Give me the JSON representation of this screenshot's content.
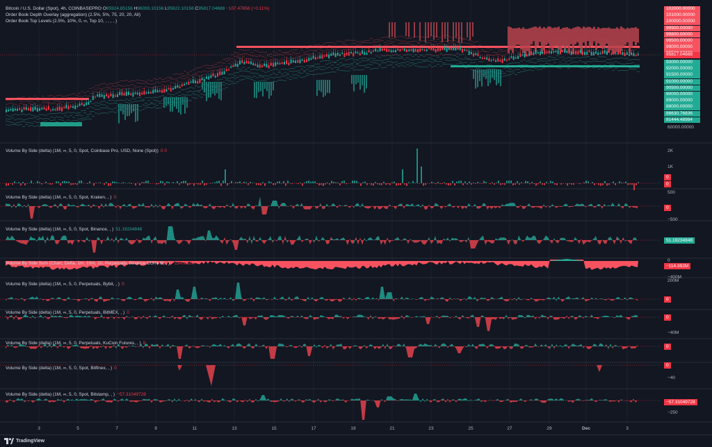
{
  "header": {
    "symbol": "Bitcoin / U.S. Dollar (Spot), 4h, COINBASEPRO",
    "open_label": "O",
    "open": "95924.85156",
    "high_label": "H",
    "high": "96093.10156",
    "low_label": "L",
    "low": "95622.10156",
    "close_label": "C",
    "close": "95817.04688",
    "change": "−107.47656 (−0.11%)",
    "indicators": [
      "Order Book Depth Overlay (aggregation) (2.5%, 5%, 75, 20, 20, All)",
      "Order Book Top Levels (2.5%, 10%, 0, ∞, Top 10, , , , , )"
    ]
  },
  "price_axis": {
    "tags_red": [
      "102000.00000",
      "101000.00000",
      "100000.00000",
      "99900.00000",
      "99800.00000",
      "99500.00000",
      "99000.00000",
      "98500.00000"
    ],
    "tag_current": "95817.04688",
    "tags_green": [
      "93000.00000",
      "92000.00000",
      "91500.00000",
      "91000.00000",
      "90500.00000",
      "90000.00000",
      "89000.00000",
      "88000.00000",
      "88630.76836",
      "81444.48984"
    ],
    "plain": "60000.00000"
  },
  "panes": [
    {
      "title": "Volume By Side (delta) (1M, ∞, 5, 0, Spot, Coinbase Pro, USD, None (Spot))",
      "value": "0 0",
      "value_color": "red",
      "axis": [
        "2K",
        "1K",
        "0",
        "0"
      ]
    },
    {
      "title": "Volume By Side (delta) (1M, ∞, 5, 0, Spot, Kraken, , )",
      "value": "0",
      "value_color": "red",
      "axis": [
        "500",
        "0",
        "−500"
      ]
    },
    {
      "title": "Volume By Side (delta) (1M, ∞, 5, 0, Spot, Binance, , )",
      "value": "51.19234848",
      "value_color": "green",
      "axis": [
        "51.19234848"
      ]
    },
    {
      "title": "Volume By Side Sum (Chart, Delta, 1m, 10m, 10, Perpetuals, Binance COIN-M, , )",
      "value": "−114.992M",
      "value_color": "red",
      "axis": [
        "0",
        "−114.992M",
        "−400M"
      ]
    },
    {
      "title": "Volume By Side (delta) (1M, ∞, 5, 0, Perpetuals, Bybit, , )",
      "value": "0",
      "value_color": "red",
      "axis": [
        "200M",
        "0"
      ]
    },
    {
      "title": "Volume By Side (delta) (1M, ∞, 5, 0, Perpetuals, BitMEX, , )",
      "value": "0",
      "value_color": "red",
      "axis": [
        "0",
        "−40M"
      ]
    },
    {
      "title": "Volume By Side (delta) (1M, ∞, 5, 0, Perpetuals, KuCoin Futures, , )",
      "value": "0",
      "value_color": "red",
      "axis": [
        "0"
      ]
    },
    {
      "title": "Volume By Side (delta) (1M, ∞, 5, 0, Spot, Bitfinex, , )",
      "value": "0",
      "value_color": "red",
      "axis": [
        "0",
        "−40"
      ]
    },
    {
      "title": "Volume By Side (delta) (1M, ∞, 5, 0, Spot, Bitstamp, , )",
      "value": "−57.31049728",
      "value_color": "red",
      "axis": [
        "−57.31049728",
        "−250"
      ]
    }
  ],
  "time_axis": [
    "3",
    "5",
    "7",
    "9",
    "11",
    "13",
    "15",
    "17",
    "19",
    "21",
    "23",
    "25",
    "27",
    "29",
    "Dec",
    "3"
  ],
  "brand": "TradingView",
  "colors": {
    "up": "#26a69a",
    "down": "#f23645",
    "bg": "#131722",
    "grid": "#1e222d",
    "red_tag": "#f7525f",
    "green_tag": "#22ab94"
  }
}
